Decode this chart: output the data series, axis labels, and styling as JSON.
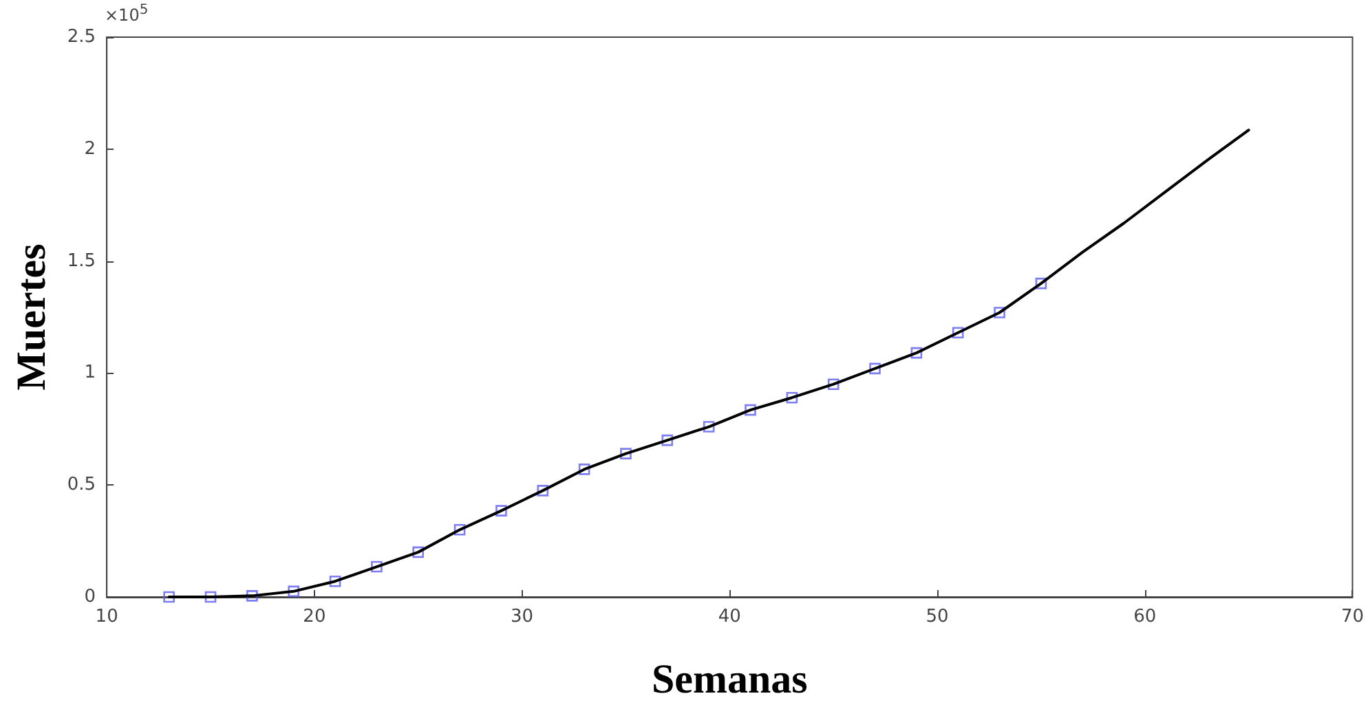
{
  "chart_data": {
    "type": "line",
    "xlabel": "Semanas",
    "ylabel": "Muertes",
    "annotations": [
      "×10$^{5}$"
    ],
    "xlim": [
      10,
      70
    ],
    "xticks": [
      10,
      20,
      30,
      40,
      50,
      60,
      70
    ],
    "ylim": [
      0,
      2.5
    ],
    "yticks": [
      0,
      0.5,
      1,
      1.5,
      2,
      2.5
    ],
    "series": [
      {
        "color": "#000000",
        "marker": "none",
        "x": [
          13,
          15,
          17,
          19,
          21,
          23,
          25,
          27,
          29,
          31,
          33,
          35,
          37,
          39,
          41,
          43,
          45,
          47,
          49,
          51,
          53,
          55,
          57,
          59,
          61,
          63,
          65
        ],
        "values": [
          0,
          0,
          0.005,
          0.025,
          0.07,
          0.135,
          0.2,
          0.3,
          0.385,
          0.475,
          0.57,
          0.64,
          0.7,
          0.76,
          0.835,
          0.89,
          0.95,
          1.02,
          1.09,
          1.18,
          1.27,
          1.4,
          1.54,
          1.67,
          1.81,
          1.95,
          2.085
        ]
      },
      {
        "type": "scatter",
        "color": "#5b5bf0",
        "marker": "square",
        "x": [
          13,
          15,
          17,
          19,
          21,
          23,
          25,
          27,
          29,
          31,
          33,
          35,
          37,
          39,
          41,
          43,
          45,
          47,
          49,
          51,
          53,
          55
        ],
        "values": [
          0,
          0,
          0.005,
          0.025,
          0.07,
          0.135,
          0.2,
          0.3,
          0.385,
          0.475,
          0.57,
          0.64,
          0.7,
          0.76,
          0.835,
          0.89,
          0.95,
          1.02,
          1.09,
          1.18,
          1.27,
          1.4
        ]
      }
    ]
  }
}
